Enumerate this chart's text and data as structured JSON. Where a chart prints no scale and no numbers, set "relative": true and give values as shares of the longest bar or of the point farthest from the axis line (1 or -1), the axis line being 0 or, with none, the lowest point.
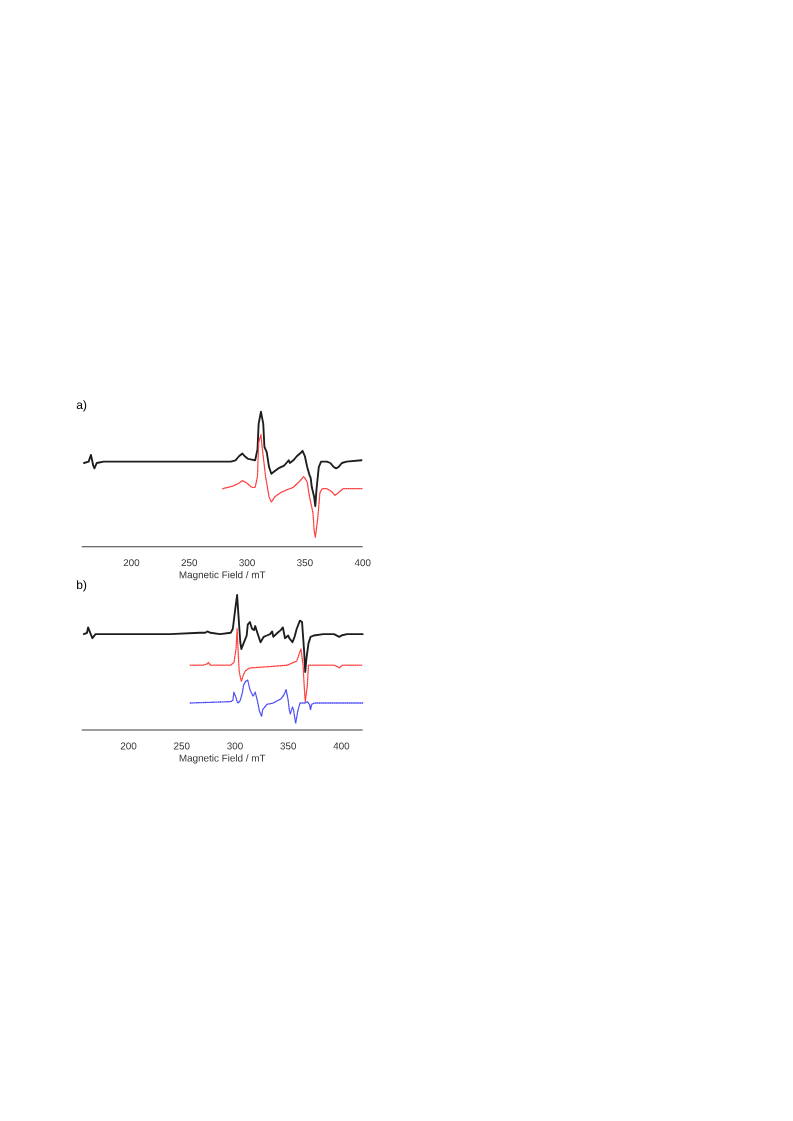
{
  "chart_data": [
    {
      "type": "line",
      "title": "a)",
      "xlabel": "Magnetic Field / mT",
      "relative": true,
      "xlim": [
        157,
        400
      ],
      "xticks": [
        200,
        250,
        300,
        350,
        400
      ],
      "series": [
        {
          "color": "#1e1e1e",
          "line_style": "solid",
          "x": [
            159,
            163,
            165,
            167,
            168,
            170,
            176,
            205,
            234,
            262,
            286,
            290,
            293,
            296,
            298,
            301,
            307,
            309,
            310,
            312,
            314,
            315,
            317,
            319,
            321,
            324,
            327,
            332,
            334,
            336,
            337,
            340,
            343,
            347,
            348,
            350,
            352,
            354,
            355,
            356,
            358,
            359,
            360,
            362,
            364,
            369,
            372,
            375,
            377,
            379,
            382,
            386,
            399
          ],
          "values": [
            0.62,
            0.63,
            0.68,
            0.6,
            0.58,
            0.62,
            0.63,
            0.63,
            0.63,
            0.63,
            0.63,
            0.64,
            0.67,
            0.69,
            0.67,
            0.65,
            0.64,
            0.72,
            0.91,
            1.0,
            0.91,
            0.74,
            0.7,
            0.59,
            0.54,
            0.56,
            0.58,
            0.6,
            0.62,
            0.64,
            0.62,
            0.64,
            0.67,
            0.7,
            0.71,
            0.67,
            0.59,
            0.53,
            0.51,
            0.44,
            0.37,
            0.3,
            0.42,
            0.59,
            0.63,
            0.63,
            0.62,
            0.59,
            0.58,
            0.59,
            0.62,
            0.63,
            0.64
          ]
        },
        {
          "color": "#ff3b3b",
          "line_style": "dotted",
          "x": [
            279,
            288,
            293,
            296,
            300,
            304,
            307,
            309,
            310,
            312,
            313,
            316,
            319,
            321,
            324,
            329,
            334,
            340,
            346,
            349,
            352,
            354,
            357,
            358,
            359,
            361,
            363,
            365,
            369,
            373,
            376,
            379,
            383,
            400
          ],
          "values": [
            0.43,
            0.45,
            0.47,
            0.49,
            0.47,
            0.44,
            0.44,
            0.52,
            0.77,
            0.83,
            0.74,
            0.52,
            0.37,
            0.33,
            0.37,
            0.4,
            0.42,
            0.44,
            0.49,
            0.52,
            0.48,
            0.37,
            0.25,
            0.12,
            0.07,
            0.2,
            0.4,
            0.43,
            0.43,
            0.41,
            0.38,
            0.4,
            0.43,
            0.43
          ]
        }
      ]
    },
    {
      "type": "line",
      "title": "b)",
      "xlabel": "Magnetic Field / mT",
      "relative": true,
      "xlim": [
        156,
        420
      ],
      "xticks": [
        200,
        250,
        300,
        350,
        400
      ],
      "series": [
        {
          "color": "#1e1e1e",
          "line_style": "solid",
          "x": [
            158,
            161,
            162,
            165,
            166,
            169,
            192,
            239,
            267,
            272,
            274,
            277,
            286,
            296,
            298,
            300,
            302,
            303,
            305,
            306,
            308,
            311,
            312,
            314,
            316,
            318,
            319,
            321,
            324,
            327,
            330,
            333,
            335,
            336,
            340,
            343,
            345,
            347,
            350,
            351,
            354,
            356,
            358,
            361,
            363,
            365,
            366,
            367,
            369,
            371,
            374,
            383,
            393,
            398,
            400,
            405,
            420
          ],
          "values": [
            0.71,
            0.72,
            0.76,
            0.7,
            0.68,
            0.71,
            0.71,
            0.71,
            0.72,
            0.72,
            0.73,
            0.72,
            0.71,
            0.72,
            0.75,
            0.88,
            1.0,
            0.88,
            0.65,
            0.6,
            0.64,
            0.7,
            0.78,
            0.8,
            0.75,
            0.74,
            0.77,
            0.72,
            0.65,
            0.69,
            0.7,
            0.71,
            0.73,
            0.69,
            0.72,
            0.74,
            0.76,
            0.68,
            0.7,
            0.68,
            0.65,
            0.69,
            0.75,
            0.81,
            0.8,
            0.58,
            0.43,
            0.52,
            0.64,
            0.69,
            0.7,
            0.71,
            0.71,
            0.69,
            0.7,
            0.71,
            0.71
          ]
        },
        {
          "color": "#ff3b3b",
          "line_style": "dotted",
          "x": [
            258,
            270,
            274,
            275,
            277,
            283,
            296,
            299,
            301,
            302,
            303,
            304,
            306,
            308,
            310,
            314,
            333,
            349,
            358,
            361,
            362,
            364,
            365,
            366,
            368,
            369,
            374,
            393,
            396,
            398,
            401,
            420
          ],
          "values": [
            0.48,
            0.48,
            0.49,
            0.5,
            0.48,
            0.48,
            0.48,
            0.5,
            0.6,
            0.75,
            0.58,
            0.43,
            0.36,
            0.41,
            0.44,
            0.46,
            0.47,
            0.48,
            0.51,
            0.58,
            0.6,
            0.48,
            0.33,
            0.21,
            0.33,
            0.48,
            0.48,
            0.48,
            0.47,
            0.46,
            0.48,
            0.48
          ]
        },
        {
          "color": "#4b4bf5",
          "line_style": "dotted",
          "x": [
            258,
            296,
            298,
            299,
            301,
            302,
            303,
            305,
            307,
            308,
            310,
            312,
            314,
            317,
            319,
            321,
            323,
            325,
            326,
            330,
            336,
            343,
            346,
            348,
            350,
            351,
            352,
            354,
            355,
            357,
            359,
            361,
            363,
            366,
            368,
            370,
            371,
            372,
            375,
            420
          ],
          "values": [
            0.2,
            0.21,
            0.22,
            0.28,
            0.24,
            0.21,
            0.2,
            0.22,
            0.28,
            0.33,
            0.36,
            0.37,
            0.3,
            0.25,
            0.28,
            0.22,
            0.14,
            0.1,
            0.15,
            0.19,
            0.2,
            0.23,
            0.26,
            0.3,
            0.22,
            0.15,
            0.12,
            0.17,
            0.15,
            0.05,
            0.14,
            0.2,
            0.2,
            0.2,
            0.21,
            0.19,
            0.15,
            0.19,
            0.2,
            0.2
          ]
        }
      ]
    }
  ]
}
